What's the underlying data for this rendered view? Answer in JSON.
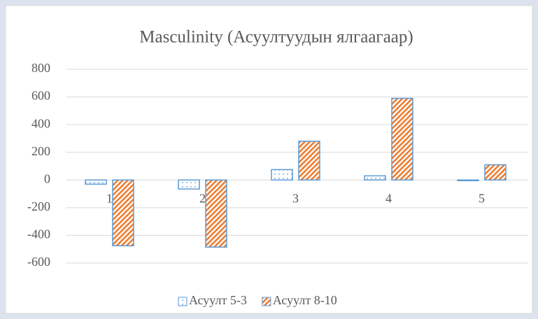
{
  "chart_data": {
    "type": "bar",
    "title": "Masculinity (Асуултуудын ялгаагаар)",
    "categories": [
      "1",
      "2",
      "3",
      "4",
      "5"
    ],
    "series": [
      {
        "name": "Асуулт 5-3",
        "color": "#5b9bd5",
        "values": [
          -30,
          -65,
          75,
          30,
          -5
        ]
      },
      {
        "name": "Асуулт 8-10",
        "color": "#ed7d31",
        "values": [
          -475,
          -485,
          280,
          590,
          110
        ]
      }
    ],
    "ylim": [
      -600,
      800
    ],
    "yticks": [
      -600,
      -400,
      -200,
      0,
      200,
      400,
      600,
      800
    ],
    "grid": true,
    "legend": "bottom"
  }
}
